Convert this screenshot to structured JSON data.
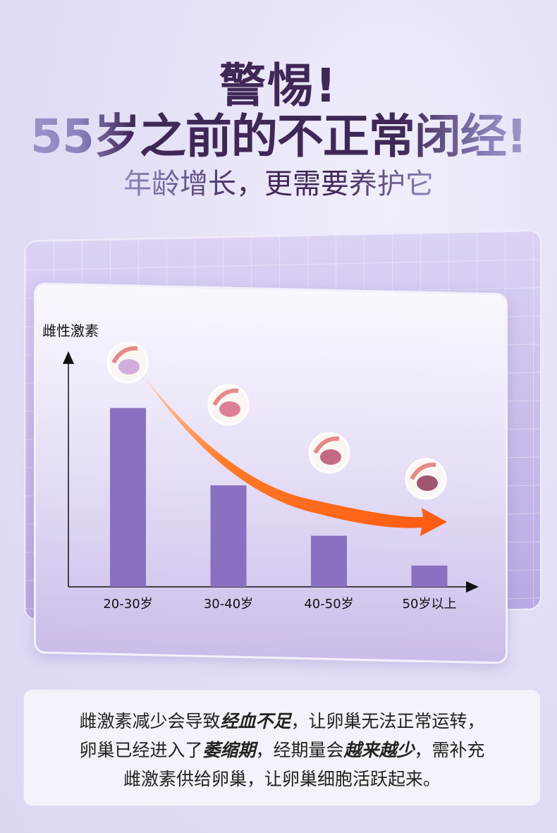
{
  "header": {
    "title": "警惕!",
    "headline": "55岁之前的不正常闭经!",
    "subtitle": "年龄增长，更需要养护它"
  },
  "chart_data": {
    "type": "bar",
    "ylabel": "雌性激素",
    "xlabel": "",
    "categories": [
      "20-30岁",
      "30-40岁",
      "40-50岁",
      "50岁以上"
    ],
    "values": [
      252,
      143,
      72,
      30
    ],
    "ylim": [
      0,
      330
    ],
    "grid": false,
    "bar_color": "#8a70c2",
    "trend_arrow_color": "#ff6a1f",
    "icons": [
      "healthy-ovary-icon",
      "ovary-stage2-icon",
      "ovary-stage3-icon",
      "ovary-atrophy-icon"
    ]
  },
  "note": {
    "line1a": "雌激素减少会导致",
    "line1b": "经血不足",
    "line1c": "，让卵巢无法正常运转，",
    "line2a": "卵巢已经进入了",
    "line2b": "萎缩期",
    "line2c": "，经期量会",
    "line2d": "越来越少",
    "line2e": "，需补充",
    "line3": "雌激素供给卵巢，让卵巢细胞活跃起来。"
  }
}
